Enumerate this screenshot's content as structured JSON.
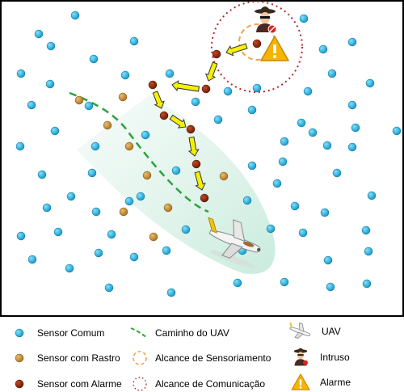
{
  "legend": {
    "common_sensor": "Sensor Comum",
    "trace_sensor": "Sensor com Rastro",
    "alarm_sensor": "Sensor com Alarme",
    "uav_path": "Caminho do UAV",
    "sensing_range": "Alcance de Sensoriamento",
    "communication_range": "Alcance de Comunicação",
    "uav": "UAV",
    "intruder": "Intruso",
    "alarm": "Alarme"
  },
  "colors": {
    "common": "#1ab0d8",
    "trace": "#c8923a",
    "alarm_sensor": "#8b2a0e",
    "path": "#2aa43a",
    "sensing": "#f5a050",
    "communication": "#b8262a",
    "arrow": "#f5f000",
    "warning": "#f4b400"
  }
}
